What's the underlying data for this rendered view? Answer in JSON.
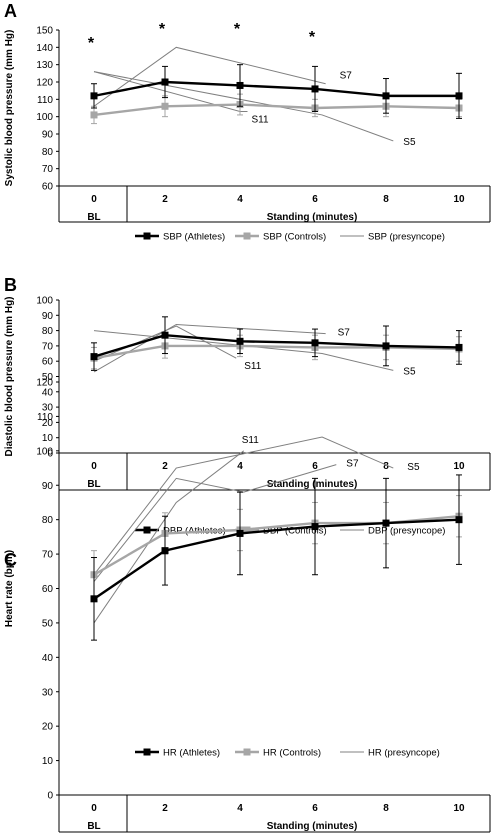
{
  "chart_data": [
    {
      "type": "line",
      "panel": "A",
      "ylabel": "Systolic blood pressure (mm Hg)",
      "ylim": [
        60,
        150
      ],
      "yticks": [
        60,
        70,
        80,
        90,
        100,
        110,
        120,
        130,
        140,
        150
      ],
      "categories": [
        "0",
        "2",
        "4",
        "6",
        "8",
        "10"
      ],
      "x_group_labels": [
        "BL",
        "Standing (minutes)"
      ],
      "significance": [
        {
          "x": "0",
          "text": "*"
        },
        {
          "x": "2",
          "text": "*"
        },
        {
          "x": "4",
          "text": "*"
        },
        {
          "x": "6",
          "text": "*"
        }
      ],
      "series": [
        {
          "name": "SBP (Athletes)",
          "color": "#000000",
          "values": [
            112,
            120,
            118,
            116,
            112,
            112
          ],
          "error": [
            7,
            9,
            12,
            13,
            10,
            13
          ]
        },
        {
          "name": "SBP (Controls)",
          "color": "#a6a6a6",
          "values": [
            101,
            106,
            107,
            105,
            106,
            105
          ],
          "error": [
            5,
            6,
            6,
            5,
            6,
            5
          ]
        },
        {
          "name": "SBP (presyncope)",
          "color": "#808080",
          "subjects": [
            {
              "label": "S7",
              "x": [
                0,
                2.3,
                6.3
              ],
              "y": [
                106,
                140,
                119
              ]
            },
            {
              "label": "S11",
              "x": [
                0,
                4,
                4.2
              ],
              "y": [
                126,
                103,
                103
              ]
            },
            {
              "label": "S5",
              "x": [
                0,
                6.2,
                8.2
              ],
              "y": [
                126,
                101,
                86
              ]
            }
          ]
        }
      ],
      "legend": [
        "SBP (Athletes)",
        "SBP (Controls)",
        "SBP (presyncope)"
      ]
    },
    {
      "type": "line",
      "panel": "B",
      "ylabel": "Diastolic blood pressure (mm Hg)",
      "ylim": [
        0,
        100
      ],
      "yticks": [
        0,
        10,
        20,
        30,
        40,
        50,
        60,
        70,
        80,
        90,
        100
      ],
      "categories": [
        "0",
        "2",
        "4",
        "6",
        "8",
        "10"
      ],
      "x_group_labels": [
        "BL",
        "Standing (minutes)"
      ],
      "series": [
        {
          "name": "DBP (Athletes)",
          "color": "#000000",
          "values": [
            63,
            77,
            73,
            72,
            70,
            69
          ],
          "error": [
            9,
            12,
            8,
            9,
            13,
            11
          ]
        },
        {
          "name": "DBP (Controls)",
          "color": "#a6a6a6",
          "values": [
            62,
            70,
            70,
            69,
            69,
            68
          ],
          "error": [
            7,
            8,
            7,
            8,
            8,
            8
          ]
        },
        {
          "name": "DBP (presyncope)",
          "color": "#808080",
          "subjects": [
            {
              "label": "S7",
              "x": [
                0,
                2.3,
                6.3
              ],
              "y": [
                53,
                84,
                78
              ]
            },
            {
              "label": "S11",
              "x": [
                0,
                2.3,
                3.9
              ],
              "y": [
                60,
                83,
                62
              ]
            },
            {
              "label": "S5",
              "x": [
                0,
                6.2,
                8.2
              ],
              "y": [
                80,
                65,
                54
              ]
            }
          ]
        }
      ],
      "legend": [
        "DBP (Athletes)",
        "DBP (Controls)",
        "DBP (presyncope)"
      ]
    },
    {
      "type": "line",
      "panel": "C",
      "ylabel": "Heart rate (bpm)",
      "ylim": [
        0,
        120
      ],
      "yticks": [
        0,
        10,
        20,
        30,
        40,
        50,
        60,
        70,
        80,
        90,
        100,
        110,
        120
      ],
      "categories": [
        "0",
        "2",
        "4",
        "6",
        "8",
        "10"
      ],
      "x_group_labels": [
        "BL",
        "Standing (minutes)"
      ],
      "series": [
        {
          "name": "HR (Athletes)",
          "color": "#000000",
          "values": [
            57,
            71,
            76,
            78,
            79,
            80
          ],
          "error": [
            12,
            10,
            12,
            14,
            13,
            13
          ]
        },
        {
          "name": "HR (Controls)",
          "color": "#a6a6a6",
          "values": [
            64,
            76,
            77,
            79,
            79,
            81
          ],
          "error": [
            7,
            6,
            6,
            6,
            6,
            6
          ]
        },
        {
          "name": "HR (presyncope)",
          "color": "#808080",
          "subjects": [
            {
              "label": "S11",
              "x": [
                0,
                2.3,
                4.1
              ],
              "y": [
                50,
                85,
                100
              ]
            },
            {
              "label": "S7",
              "x": [
                0,
                2.3,
                4.1,
                6.6
              ],
              "y": [
                62,
                92,
                88,
                96
              ]
            },
            {
              "label": "S5",
              "x": [
                0,
                2.3,
                6.2,
                8.2
              ],
              "y": [
                64,
                95,
                104,
                95
              ]
            }
          ]
        }
      ],
      "legend": [
        "HR (Athletes)",
        "HR (Controls)",
        "HR (presyncope)"
      ]
    }
  ]
}
